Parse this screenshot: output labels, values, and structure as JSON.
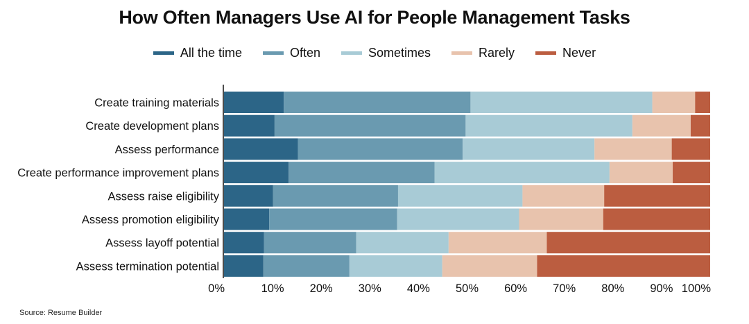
{
  "title": "How Often Managers Use AI for People Management Tasks",
  "source": "Source: Resume Builder",
  "legend": [
    {
      "name": "All the time",
      "color": "#2c6587"
    },
    {
      "name": "Often",
      "color": "#6a9ab0"
    },
    {
      "name": "Sometimes",
      "color": "#a8cbd6"
    },
    {
      "name": "Rarely",
      "color": "#e8c3ad"
    },
    {
      "name": "Never",
      "color": "#bb5d40"
    }
  ],
  "chart_data": {
    "type": "bar",
    "orientation": "horizontal",
    "stacked": true,
    "title": "How Often Managers Use AI for People Management Tasks",
    "categories": [
      "Create training materials",
      "Create development plans",
      "Assess performance",
      "Create performance improvement plans",
      "Assess raise eligibility",
      "Assess promotion eligibility",
      "Assess layoff potential",
      "Assess termination potential"
    ],
    "series": [
      {
        "name": "All the time",
        "color": "#2c6587",
        "values": [
          12.3,
          10.4,
          15.2,
          13.3,
          10.1,
          9.3,
          8.2,
          8.1
        ]
      },
      {
        "name": "Often",
        "color": "#6a9ab0",
        "values": [
          38.4,
          39.3,
          33.9,
          30.0,
          25.7,
          26.3,
          19.0,
          17.7
        ]
      },
      {
        "name": "Sometimes",
        "color": "#a8cbd6",
        "values": [
          37.4,
          34.3,
          27.1,
          36.0,
          25.6,
          25.1,
          19.0,
          19.1
        ]
      },
      {
        "name": "Rarely",
        "color": "#e8c3ad",
        "values": [
          8.8,
          12.0,
          15.9,
          13.0,
          16.8,
          17.3,
          20.2,
          19.5
        ]
      },
      {
        "name": "Never",
        "color": "#bb5d40",
        "values": [
          3.1,
          4.0,
          7.9,
          7.7,
          21.8,
          22.0,
          33.6,
          35.6
        ]
      }
    ],
    "xlim": [
      0,
      100
    ],
    "xticks": [
      "0%",
      "10%",
      "20%",
      "30%",
      "40%",
      "50%",
      "60%",
      "70%",
      "80%",
      "90%",
      "100%"
    ],
    "grid": false,
    "legend_position": "top-center"
  }
}
